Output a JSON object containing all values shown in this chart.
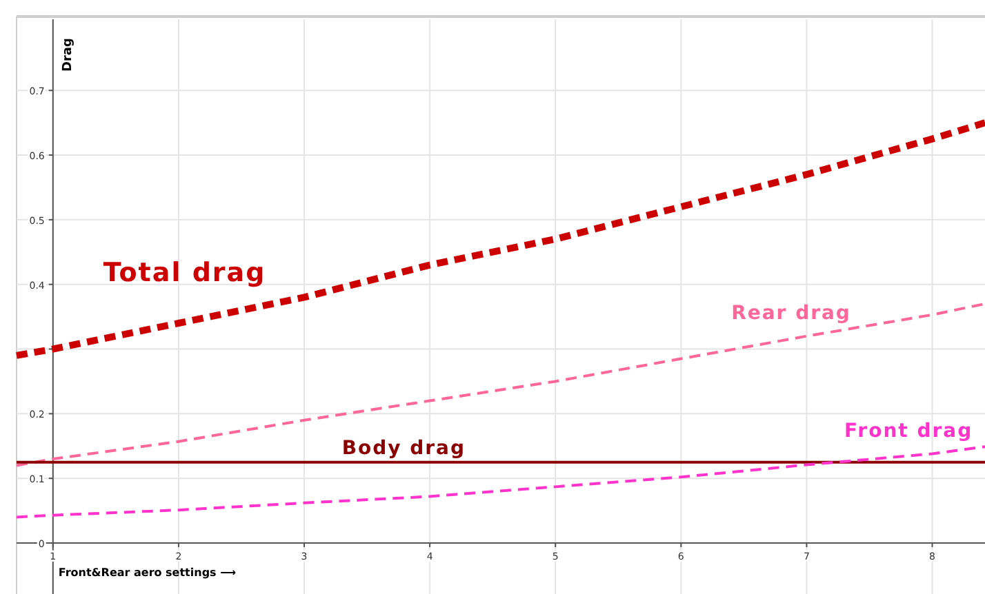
{
  "chart_data": {
    "type": "line",
    "xlabel": "Front&Rear aero settings ⟶",
    "ylabel": "Drag",
    "xlim": [
      0.71,
      8.42
    ],
    "ylim": [
      0,
      0.81
    ],
    "xticks": [
      1,
      2,
      3,
      4,
      5,
      6,
      7,
      8
    ],
    "yticks": [
      0,
      0.1,
      0.2,
      {
        "value": 0.3,
        "label": null
      },
      0.4,
      0.5,
      0.6,
      0.7
    ],
    "grid": true,
    "series": [
      {
        "name": "Total drag",
        "color": "#cc0000",
        "line_style": "dashed",
        "x": [
          0.71,
          1,
          2,
          3,
          4,
          5,
          6,
          7,
          8,
          8.42
        ],
        "values": [
          0.29,
          0.3,
          0.34,
          0.38,
          0.43,
          0.47,
          0.52,
          0.57,
          0.625,
          0.65
        ]
      },
      {
        "name": "Rear drag",
        "color": "#ff6699",
        "line_style": "dashed",
        "x": [
          0.71,
          1,
          2,
          3,
          4,
          5,
          6,
          7,
          8,
          8.42
        ],
        "values": [
          0.12,
          0.13,
          0.157,
          0.19,
          0.22,
          0.25,
          0.285,
          0.32,
          0.353,
          0.37
        ]
      },
      {
        "name": "Body drag",
        "color": "#8b0000",
        "line_style": "solid",
        "x": [
          0.71,
          8.42
        ],
        "values": [
          0.125,
          0.125
        ]
      },
      {
        "name": "Front drag",
        "color": "#ff33cc",
        "line_style": "dashed",
        "x": [
          0.71,
          1,
          2,
          3,
          4,
          5,
          6,
          7,
          8,
          8.42
        ],
        "values": [
          0.04,
          0.043,
          0.051,
          0.062,
          0.072,
          0.087,
          0.102,
          0.121,
          0.138,
          0.149
        ]
      }
    ]
  }
}
